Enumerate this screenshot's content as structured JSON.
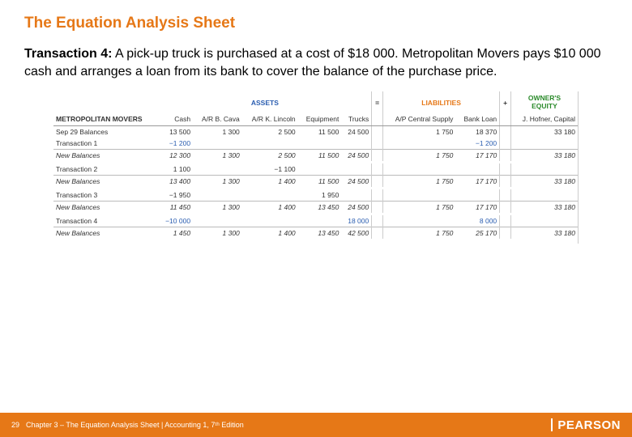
{
  "title": "The Equation Analysis Sheet",
  "transaction_label": "Transaction 4:",
  "description_rest": " A pick-up truck is purchased at a cost of $18 000. Metropolitan Movers pays $10 000 cash and arranges a loan from its bank to cover the balance of the purchase price.",
  "section_heads": {
    "assets": "ASSETS",
    "eq": "=",
    "liab": "LIABILITIES",
    "plus": "+",
    "owner_l1": "OWNER'S",
    "owner_l2": "EQUITY"
  },
  "company": "METROPOLITAN MOVERS",
  "columns": {
    "cash": "Cash",
    "ar_cava": "A/R B. Cava",
    "ar_lincoln": "A/R K. Lincoln",
    "equipment": "Equipment",
    "trucks": "Trucks",
    "ap_central": "A/P Central Supply",
    "bank_loan": "Bank Loan",
    "capital": "J. Hofner, Capital"
  },
  "rows": [
    {
      "label": "Sep 29 Balances",
      "cash": "13 500",
      "cava": "1 300",
      "lincoln": "2 500",
      "equip": "11 500",
      "trucks": "24 500",
      "ap": "1 750",
      "loan": "18 370",
      "cap": "33 180",
      "cls": ""
    },
    {
      "label": "Transaction 1",
      "cash": "−1 200",
      "cava": "",
      "lincoln": "",
      "equip": "",
      "trucks": "",
      "ap": "",
      "loan": "−1 200",
      "cap": "",
      "cls": "",
      "blue": true
    },
    {
      "label": "New Balances",
      "cash": "12 300",
      "cava": "1 300",
      "lincoln": "2 500",
      "equip": "11 500",
      "trucks": "24 500",
      "ap": "1 750",
      "loan": "17 170",
      "cap": "33 180",
      "cls": "italic row-tb"
    },
    {
      "label": "",
      "cls": "spacer"
    },
    {
      "label": "Transaction 2",
      "cash": "1 100",
      "cava": "",
      "lincoln": "−1 100",
      "equip": "",
      "trucks": "",
      "ap": "",
      "loan": "",
      "cap": "",
      "cls": ""
    },
    {
      "label": "New Balances",
      "cash": "13 400",
      "cava": "1 300",
      "lincoln": "1 400",
      "equip": "11 500",
      "trucks": "24 500",
      "ap": "1 750",
      "loan": "17 170",
      "cap": "33 180",
      "cls": "italic row-tb"
    },
    {
      "label": "",
      "cls": "spacer"
    },
    {
      "label": "Transaction 3",
      "cash": "−1 950",
      "cava": "",
      "lincoln": "",
      "equip": "1 950",
      "trucks": "",
      "ap": "",
      "loan": "",
      "cap": "",
      "cls": ""
    },
    {
      "label": "New Balances",
      "cash": "11 450",
      "cava": "1 300",
      "lincoln": "1 400",
      "equip": "13 450",
      "trucks": "24 500",
      "ap": "1 750",
      "loan": "17 170",
      "cap": "33 180",
      "cls": "italic row-tb"
    },
    {
      "label": "",
      "cls": "spacer"
    },
    {
      "label": "Transaction 4",
      "cash": "−10 000",
      "cava": "",
      "lincoln": "",
      "equip": "",
      "trucks": "18 000",
      "ap": "",
      "loan": "8 000",
      "cap": "",
      "cls": "",
      "blue": true
    },
    {
      "label": "New Balances",
      "cash": "1 450",
      "cava": "1 300",
      "lincoln": "1 400",
      "equip": "13 450",
      "trucks": "42 500",
      "ap": "1 750",
      "loan": "25 170",
      "cap": "33 180",
      "cls": "italic row-tb"
    }
  ],
  "footer": {
    "page": "29",
    "text": "Chapter 3 – The Equation Analysis Sheet | Accounting 1, 7ᵗʰ Edition",
    "brand": "PEARSON"
  },
  "colors": {
    "accent": "#e67817",
    "assets": "#2a5db0",
    "owner": "#2a8a2a"
  }
}
